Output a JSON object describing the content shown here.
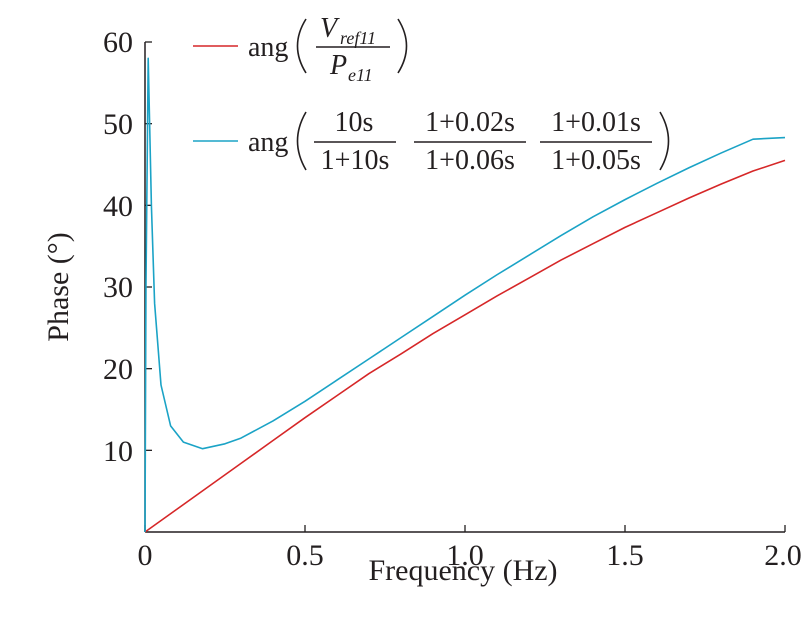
{
  "chart_data": {
    "type": "line",
    "title": "",
    "xlabel": "Frequency (Hz)",
    "ylabel": "Phase (°)",
    "xlim": [
      0,
      2.0
    ],
    "ylim": [
      0,
      60
    ],
    "x_tick_labels": [
      "0",
      "0.5",
      "1.0",
      "1.5",
      "2.0"
    ],
    "y_tick_labels": [
      "10",
      "20",
      "30",
      "40",
      "50",
      "60"
    ],
    "grid": false,
    "legend_position": "top",
    "legend": {
      "series1": {
        "prefix": "ang",
        "num_main": "V",
        "num_sub": "ref11",
        "den_main": "P",
        "den_sub": "e11"
      },
      "series2": {
        "prefix": "ang",
        "frac1_num": "10s",
        "frac1_den": "1+10s",
        "frac2_num": "1+0.02s",
        "frac2_den": "1+0.06s",
        "frac3_num": "1+0.01s",
        "frac3_den": "1+0.05s"
      }
    },
    "series": [
      {
        "color": "#d62728",
        "x": [
          0,
          0.1,
          0.2,
          0.3,
          0.4,
          0.5,
          0.6,
          0.7,
          0.8,
          0.9,
          1.0,
          1.1,
          1.2,
          1.3,
          1.4,
          1.5,
          1.6,
          1.7,
          1.8,
          1.9,
          2.0
        ],
        "values": [
          0,
          2.8,
          5.6,
          8.4,
          11.2,
          14.0,
          16.7,
          19.4,
          21.8,
          24.3,
          26.6,
          28.9,
          31.1,
          33.3,
          35.3,
          37.3,
          39.1,
          40.9,
          42.6,
          44.2,
          45.5
        ]
      },
      {
        "color": "#1ba3c6",
        "x": [
          0,
          0.003,
          0.01,
          0.02,
          0.03,
          0.05,
          0.08,
          0.12,
          0.18,
          0.25,
          0.3,
          0.4,
          0.5,
          0.6,
          0.7,
          0.8,
          0.9,
          1.0,
          1.1,
          1.2,
          1.3,
          1.4,
          1.5,
          1.6,
          1.7,
          1.8,
          1.9,
          2.0
        ],
        "values": [
          0,
          30,
          58,
          40,
          28,
          18,
          13,
          11,
          10.2,
          10.8,
          11.5,
          13.6,
          16.0,
          18.6,
          21.2,
          23.8,
          26.4,
          29.0,
          31.5,
          33.9,
          36.3,
          38.6,
          40.7,
          42.7,
          44.6,
          46.4,
          48.1,
          48.3
        ]
      }
    ]
  }
}
